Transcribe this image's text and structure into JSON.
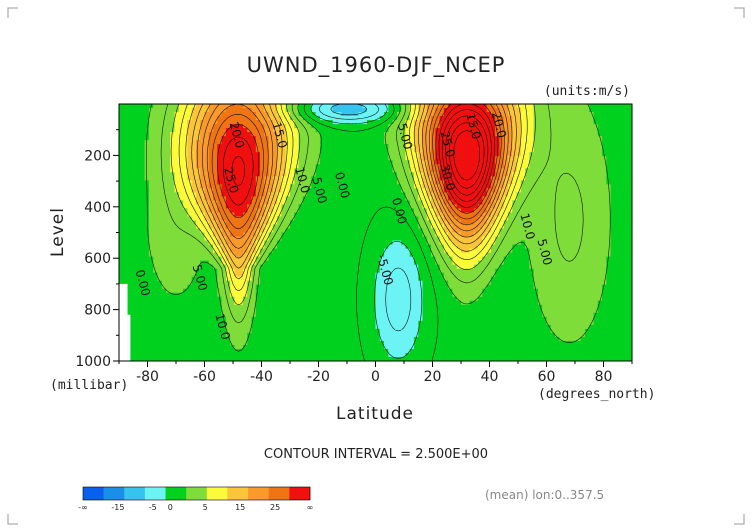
{
  "chart_data": {
    "type": "heatmap",
    "title": "UWND_1960-DJF_NCEP",
    "units": "(units:m/s)",
    "ylabel": "Level",
    "yunit": "(millibar)",
    "xlabel": "Latitude",
    "xunit": "(degrees_north)",
    "xlim": [
      -90,
      90
    ],
    "ylim": [
      1000,
      0
    ],
    "xticks": [
      -80,
      -60,
      -40,
      -20,
      0,
      20,
      40,
      60,
      80
    ],
    "yticks": [
      200,
      400,
      600,
      800,
      1000
    ],
    "jets": [
      {
        "lat": -48,
        "level": 260,
        "peak": 27.5
      },
      {
        "lat": 32,
        "level": 200,
        "peak": 40
      }
    ],
    "contour_labels": [
      {
        "text": "20.0",
        "lat": -50,
        "level": 125
      },
      {
        "text": "15.0",
        "lat": -35,
        "level": 125
      },
      {
        "text": "25.0",
        "lat": -52,
        "level": 300
      },
      {
        "text": "10.0",
        "lat": -27,
        "level": 300
      },
      {
        "text": "5.00",
        "lat": -21,
        "level": 340
      },
      {
        "text": "0.00",
        "lat": -13,
        "level": 320
      },
      {
        "text": "5.00",
        "lat": 9,
        "level": 130
      },
      {
        "text": "0.00",
        "lat": 7,
        "level": 420
      },
      {
        "text": "15.0",
        "lat": 33,
        "level": 90
      },
      {
        "text": "20.0",
        "lat": 42,
        "level": 85
      },
      {
        "text": "25.0",
        "lat": 24,
        "level": 160
      },
      {
        "text": "30.0",
        "lat": 24,
        "level": 290
      },
      {
        "text": "10.0",
        "lat": 52,
        "level": 480
      },
      {
        "text": "5.00",
        "lat": 58,
        "level": 580
      },
      {
        "text": "-5.00",
        "lat": 2,
        "level": 650
      },
      {
        "text": "0.00",
        "lat": -83,
        "level": 700
      },
      {
        "text": "5.00",
        "lat": -63,
        "level": 680
      },
      {
        "text": "10.0",
        "lat": -55,
        "level": 870
      }
    ],
    "contour_interval": "CONTOUR INTERVAL = 2.500E+00",
    "colorbar": {
      "colors": [
        "#0a60ee",
        "#1a8fe8",
        "#36c4ee",
        "#6cf4f4",
        "#00d11f",
        "#7fdd3a",
        "#fbfb3a",
        "#fbc53a",
        "#f99a2b",
        "#ef7413",
        "#f10f0f"
      ],
      "labels": [
        "-∞",
        "-15",
        "-5",
        "0",
        "5",
        "15",
        "25",
        "∞"
      ],
      "label_positions": [
        0,
        2,
        4,
        5,
        7,
        9,
        11,
        13
      ]
    },
    "footer": "(mean) lon:0..357.5"
  }
}
